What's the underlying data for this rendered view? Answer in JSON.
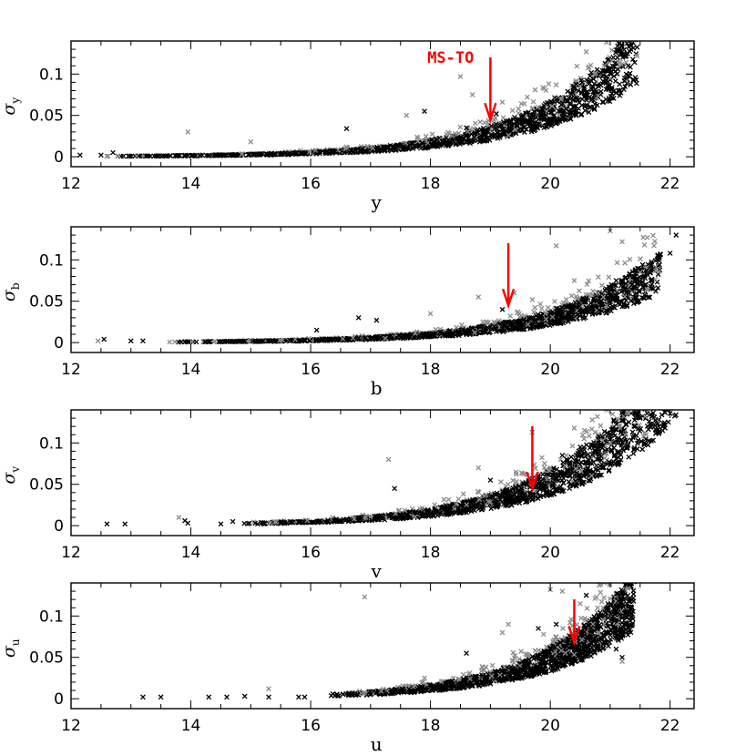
{
  "colors": {
    "series_1": "#000000",
    "series_2": "#8c8c8c",
    "arrow": "#ff0000"
  },
  "chart_data": [
    {
      "type": "scatter",
      "xlabel": "y",
      "ylabel": "σ",
      "ylabel_subscript": "y",
      "xlim": [
        12,
        22.4
      ],
      "ylim": [
        -0.012,
        0.14
      ],
      "xticks": [
        12,
        14,
        16,
        18,
        20,
        22
      ],
      "yticks": [
        0,
        0.05,
        0.1
      ],
      "ytick_labels": [
        "0",
        "0.05",
        "0.1"
      ],
      "curve_model": {
        "a": 0.00048,
        "m0": 12.3,
        "k": 0.605,
        "xmin": 12.5,
        "xmax": 21.45
      },
      "series": [
        {
          "color": "#000000",
          "values": [
            [
              12.15,
              0.002
            ],
            [
              12.5,
              0.002
            ],
            [
              12.7,
              0.005
            ],
            [
              16.6,
              0.034
            ],
            [
              17.9,
              0.055
            ],
            [
              18.6,
              0.035
            ],
            [
              19.1,
              0.052
            ],
            [
              21.3,
              0.11
            ]
          ]
        },
        {
          "color": "#8c8c8c",
          "values": [
            [
              13.95,
              0.03
            ],
            [
              15.0,
              0.018
            ],
            [
              17.6,
              0.05
            ],
            [
              18.5,
              0.097
            ],
            [
              18.7,
              0.075
            ],
            [
              19.2,
              0.066
            ],
            [
              19.8,
              0.06
            ],
            [
              20.1,
              0.087
            ],
            [
              20.5,
              0.085
            ],
            [
              20.6,
              0.127
            ],
            [
              20.9,
              0.11
            ],
            [
              21.0,
              0.095
            ],
            [
              21.45,
              0.122
            ]
          ]
        }
      ],
      "annotations": [
        {
          "text": "MS-TO",
          "x": 19.0,
          "y": 0.045
        }
      ]
    },
    {
      "type": "scatter",
      "xlabel": "b",
      "ylabel": "σ",
      "ylabel_subscript": "b",
      "xlim": [
        12,
        22.4
      ],
      "ylim": [
        -0.012,
        0.14
      ],
      "xticks": [
        12,
        14,
        16,
        18,
        20,
        22
      ],
      "yticks": [
        0,
        0.05,
        0.1
      ],
      "ytick_labels": [
        "0",
        "0.05",
        "0.1"
      ],
      "curve_model": {
        "a": 0.00045,
        "m0": 12.9,
        "k": 0.585,
        "xmin": 13.5,
        "xmax": 21.85
      },
      "series": [
        {
          "color": "#000000",
          "values": [
            [
              12.55,
              0.004
            ],
            [
              13.0,
              0.002
            ],
            [
              13.2,
              0.002
            ],
            [
              16.1,
              0.015
            ],
            [
              16.8,
              0.03
            ],
            [
              17.1,
              0.027
            ],
            [
              19.2,
              0.04
            ],
            [
              21.1,
              0.075
            ],
            [
              21.4,
              0.08
            ],
            [
              22.0,
              0.108
            ],
            [
              22.1,
              0.13
            ]
          ]
        },
        {
          "color": "#8c8c8c",
          "values": [
            [
              12.45,
              0.002
            ],
            [
              18.0,
              0.035
            ],
            [
              18.8,
              0.055
            ],
            [
              19.4,
              0.06
            ],
            [
              19.7,
              0.052
            ],
            [
              20.1,
              0.117
            ],
            [
              20.4,
              0.075
            ],
            [
              20.8,
              0.06
            ],
            [
              21.0,
              0.135
            ],
            [
              21.2,
              0.122
            ],
            [
              21.5,
              0.085
            ]
          ]
        }
      ],
      "annotations": [
        {
          "text": "",
          "x": 19.3,
          "y": 0.045
        }
      ]
    },
    {
      "type": "scatter",
      "xlabel": "v",
      "ylabel": "σ",
      "ylabel_subscript": "v",
      "xlim": [
        12,
        22.4
      ],
      "ylim": [
        -0.012,
        0.14
      ],
      "xticks": [
        12,
        14,
        16,
        18,
        20,
        22
      ],
      "yticks": [
        0,
        0.05,
        0.1
      ],
      "ytick_labels": [
        "0",
        "0.05",
        "0.1"
      ],
      "curve_model": {
        "a": 0.0013,
        "m0": 13.9,
        "k": 0.6,
        "xmin": 14.8,
        "xmax": 22.1
      },
      "series": [
        {
          "color": "#000000",
          "values": [
            [
              12.6,
              0.002
            ],
            [
              12.9,
              0.002
            ],
            [
              13.9,
              0.006
            ],
            [
              13.95,
              0.003
            ],
            [
              14.5,
              0.002
            ],
            [
              14.7,
              0.005
            ],
            [
              17.4,
              0.045
            ],
            [
              19.0,
              0.055
            ],
            [
              20.2,
              0.085
            ],
            [
              20.5,
              0.095
            ],
            [
              21.0,
              0.105
            ],
            [
              21.4,
              0.12
            ]
          ]
        },
        {
          "color": "#8c8c8c",
          "values": [
            [
              13.8,
              0.01
            ],
            [
              17.3,
              0.08
            ],
            [
              18.8,
              0.07
            ],
            [
              19.7,
              0.113
            ],
            [
              20.0,
              0.07
            ],
            [
              20.4,
              0.118
            ],
            [
              20.7,
              0.128
            ],
            [
              21.0,
              0.1
            ],
            [
              21.3,
              0.138
            ],
            [
              21.6,
              0.11
            ]
          ]
        }
      ],
      "annotations": [
        {
          "text": "",
          "x": 19.7,
          "y": 0.045
        }
      ]
    },
    {
      "type": "scatter",
      "xlabel": "u",
      "ylabel": "σ",
      "ylabel_subscript": "u",
      "xlim": [
        12,
        22.4
      ],
      "ylim": [
        -0.012,
        0.14
      ],
      "xticks": [
        12,
        14,
        16,
        18,
        20,
        22
      ],
      "yticks": [
        0,
        0.05,
        0.1
      ],
      "ytick_labels": [
        "0",
        "0.05",
        "0.1"
      ],
      "curve_model": {
        "a": 0.0032,
        "m0": 15.9,
        "k": 0.65,
        "xmin": 16.2,
        "xmax": 21.4
      },
      "series": [
        {
          "color": "#000000",
          "values": [
            [
              13.2,
              0.002
            ],
            [
              13.5,
              0.002
            ],
            [
              14.3,
              0.002
            ],
            [
              14.6,
              0.002
            ],
            [
              14.9,
              0.003
            ],
            [
              15.3,
              0.002
            ],
            [
              15.8,
              0.002
            ],
            [
              15.9,
              0.002
            ],
            [
              18.6,
              0.055
            ],
            [
              19.8,
              0.085
            ],
            [
              20.1,
              0.09
            ],
            [
              20.6,
              0.125
            ],
            [
              21.1,
              0.06
            ],
            [
              21.2,
              0.05
            ]
          ]
        },
        {
          "color": "#8c8c8c",
          "values": [
            [
              15.3,
              0.012
            ],
            [
              16.9,
              0.123
            ],
            [
              17.9,
              0.025
            ],
            [
              19.2,
              0.08
            ],
            [
              19.3,
              0.09
            ],
            [
              20.0,
              0.132
            ],
            [
              20.2,
              0.13
            ],
            [
              20.5,
              0.115
            ],
            [
              21.2,
              0.045
            ]
          ]
        }
      ],
      "annotations": [
        {
          "text": "",
          "x": 20.4,
          "y": 0.068
        }
      ]
    }
  ]
}
